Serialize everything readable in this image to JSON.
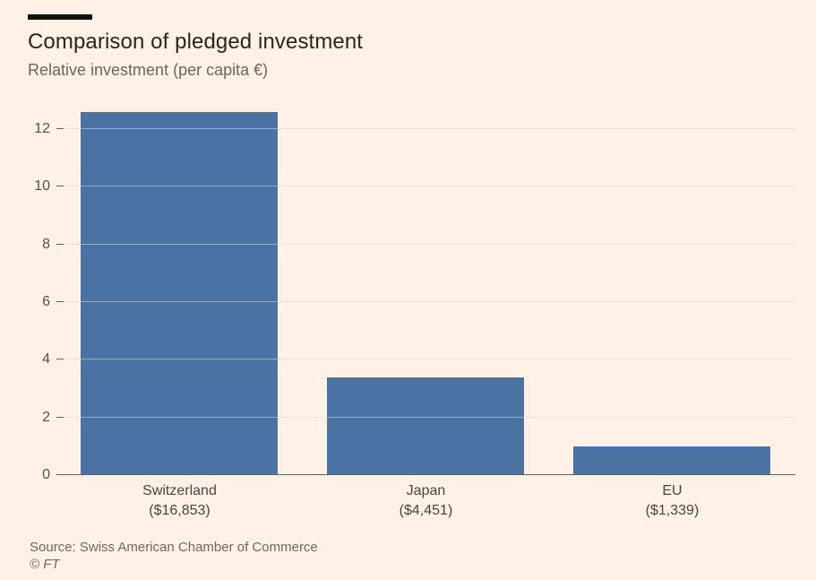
{
  "page": {
    "background_color": "#FFF1E5"
  },
  "header": {
    "title": "Comparison of pledged investment",
    "subtitle": "Relative investment (per capita €)"
  },
  "chart_data": {
    "type": "bar",
    "title": "Comparison of pledged investment",
    "subtitle": "Relative investment (per capita €)",
    "categories": [
      "Switzerland",
      "Japan",
      "EU"
    ],
    "category_sublabels": [
      "($16,853)",
      "($4,451)",
      "($1,339)"
    ],
    "values": [
      12.6,
      3.4,
      1.0
    ],
    "ylim": [
      0,
      13
    ],
    "yticks": [
      0,
      2,
      4,
      6,
      8,
      10,
      12
    ],
    "grid": true,
    "legend": "none",
    "bar_color": "#4A73A3",
    "gridline_color": "#E0D2C7",
    "axis_color": "#66605C"
  },
  "footer": {
    "source": "Source: Swiss American Chamber of Commerce",
    "copyright": "© FT"
  }
}
